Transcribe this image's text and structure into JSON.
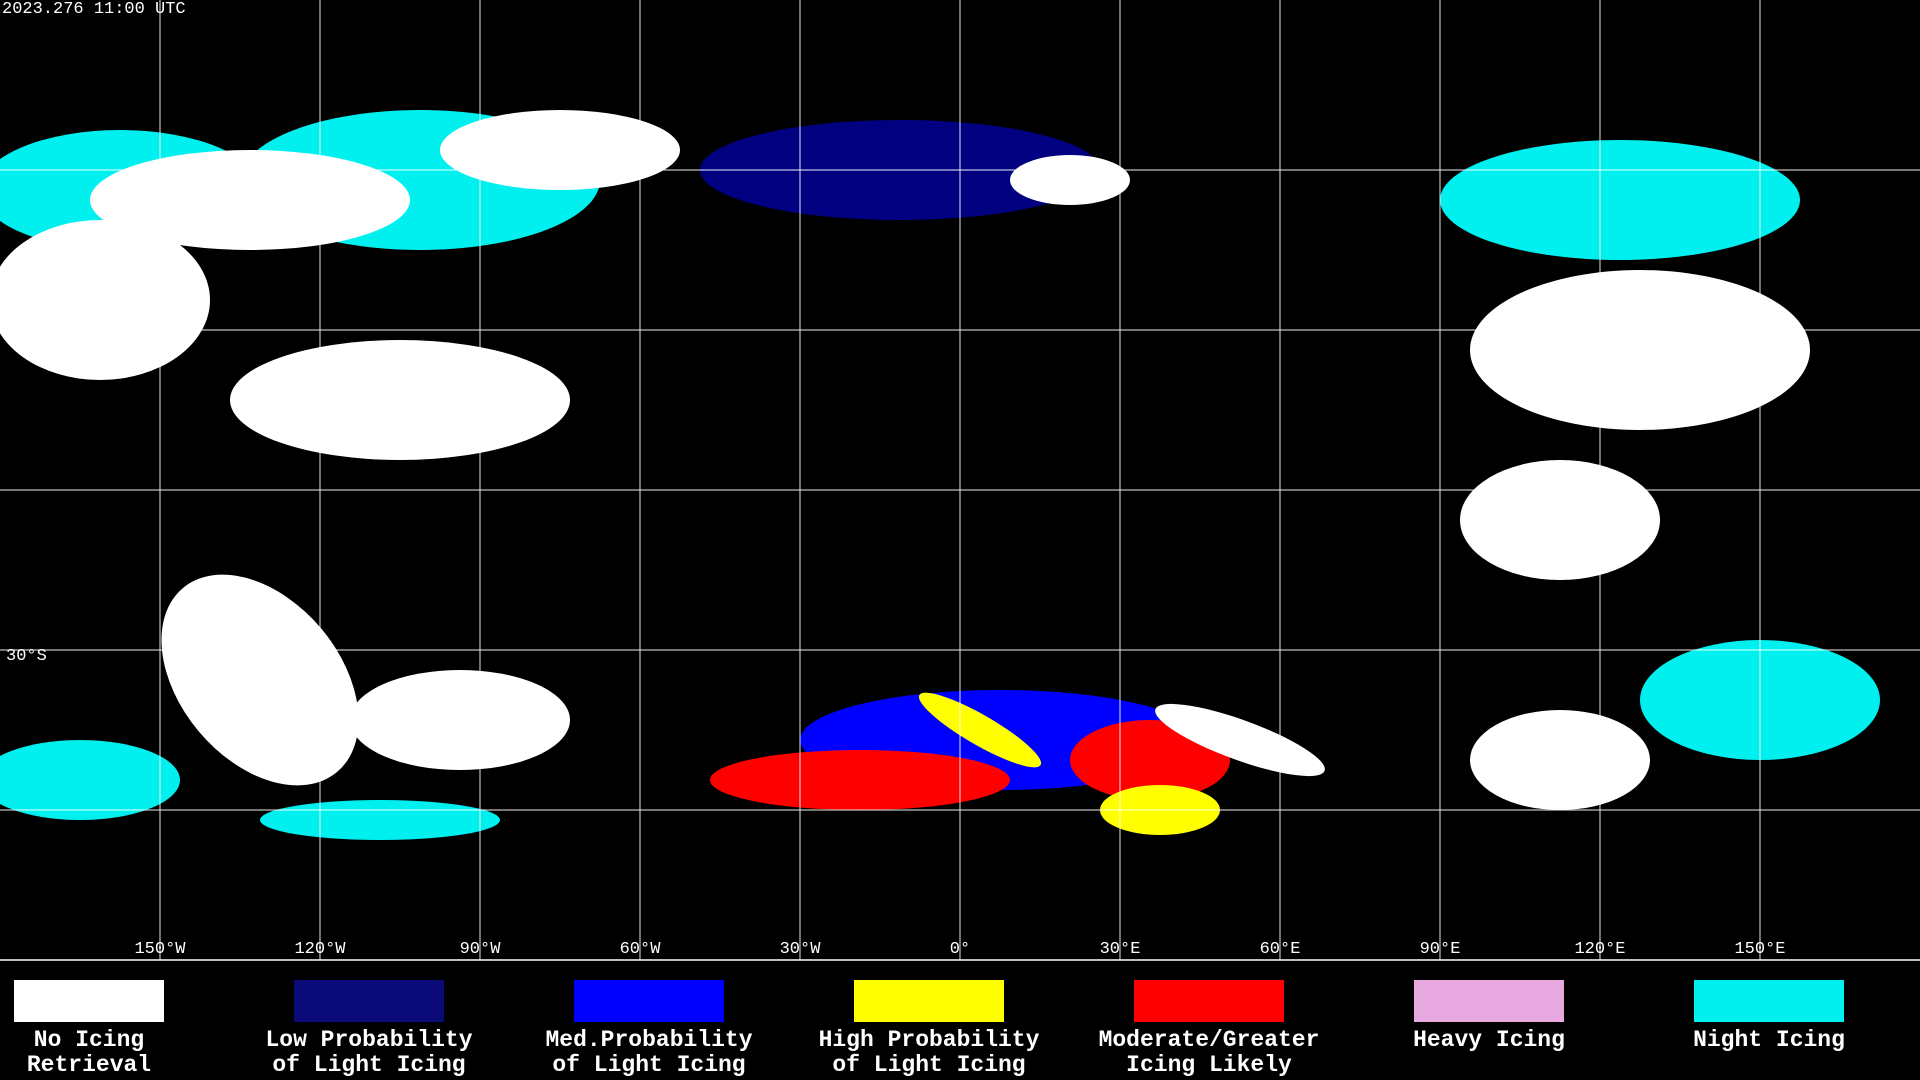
{
  "timestamp": "2023.276 11:00 UTC",
  "longitude_labels": [
    "150°W",
    "120°W",
    "90°W",
    "60°W",
    "30°W",
    "0°",
    "30°E",
    "60°E",
    "90°E",
    "120°E",
    "150°E"
  ],
  "latitude_labels": [
    "30°S"
  ],
  "legend": [
    {
      "lines": [
        "No Icing",
        "Retrieval"
      ],
      "color": "#ffffff"
    },
    {
      "lines": [
        "Low Probability",
        "of Light Icing"
      ],
      "color": "#0a0a78"
    },
    {
      "lines": [
        "Med.Probability",
        "of Light Icing"
      ],
      "color": "#0000ff"
    },
    {
      "lines": [
        "High Probability",
        "of Light Icing"
      ],
      "color": "#ffff00"
    },
    {
      "lines": [
        "Moderate/Greater",
        "Icing Likely"
      ],
      "color": "#ff0000"
    },
    {
      "lines": [
        "Heavy Icing"
      ],
      "color": "#e8a8e0"
    },
    {
      "lines": [
        "Night Icing"
      ],
      "color": "#00f0f0"
    }
  ]
}
